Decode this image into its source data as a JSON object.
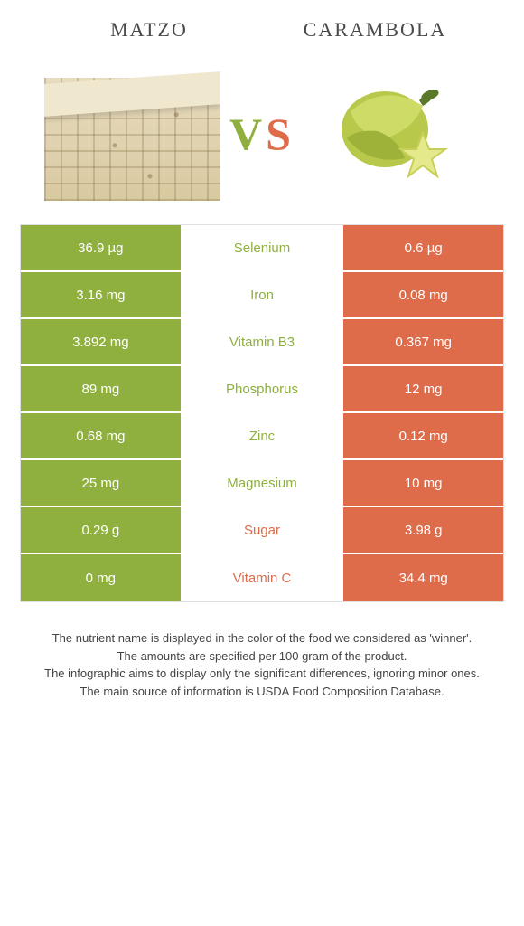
{
  "titles": {
    "left": "MATZO",
    "right": "CARAMBOLA"
  },
  "vs": {
    "v": "V",
    "s": "S"
  },
  "colors": {
    "left_bg": "#8fb03e",
    "right_bg": "#de6b4a",
    "left_text": "#8fb03e",
    "right_text": "#de6b4a",
    "cell_text": "#ffffff"
  },
  "rows": [
    {
      "left": "36.9 µg",
      "name": "Selenium",
      "right": "0.6 µg",
      "winner": "left"
    },
    {
      "left": "3.16 mg",
      "name": "Iron",
      "right": "0.08 mg",
      "winner": "left"
    },
    {
      "left": "3.892 mg",
      "name": "Vitamin B3",
      "right": "0.367 mg",
      "winner": "left"
    },
    {
      "left": "89 mg",
      "name": "Phosphorus",
      "right": "12 mg",
      "winner": "left"
    },
    {
      "left": "0.68 mg",
      "name": "Zinc",
      "right": "0.12 mg",
      "winner": "left"
    },
    {
      "left": "25 mg",
      "name": "Magnesium",
      "right": "10 mg",
      "winner": "left"
    },
    {
      "left": "0.29 g",
      "name": "Sugar",
      "right": "3.98 g",
      "winner": "right"
    },
    {
      "left": "0 mg",
      "name": "Vitamin C",
      "right": "34.4 mg",
      "winner": "right"
    }
  ],
  "footer": [
    "The nutrient name is displayed in the color of the food we considered as 'winner'.",
    "The amounts are specified per 100 gram of the product.",
    "The infographic aims to display only the significant differences, ignoring minor ones.",
    "The main source of information is USDA Food Composition Database."
  ]
}
